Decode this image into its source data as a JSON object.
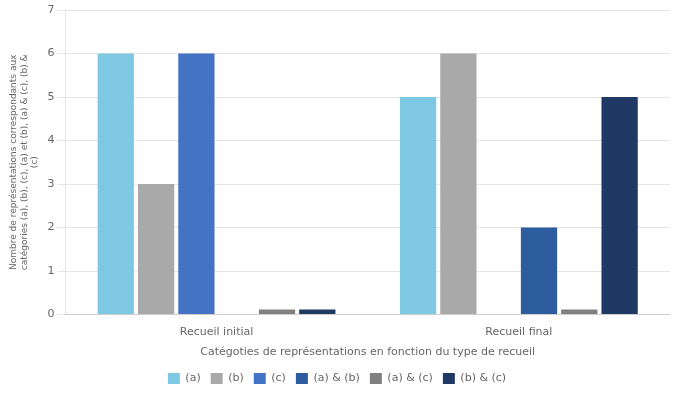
{
  "chart_data": {
    "type": "bar",
    "categories": [
      "Recueil initial",
      "Recueil final"
    ],
    "series": [
      {
        "name": "(a)",
        "color": "#7EC8E3",
        "values": [
          6,
          5
        ]
      },
      {
        "name": "(b)",
        "color": "#A9A9A9",
        "values": [
          3,
          6
        ]
      },
      {
        "name": "(c)",
        "color": "#4472C4",
        "values": [
          6,
          0
        ]
      },
      {
        "name": "(a) & (b)",
        "color": "#2E5D9F",
        "values": [
          0,
          2
        ]
      },
      {
        "name": "(a) & (c)",
        "color": "#808080",
        "values": [
          0.12,
          0.12
        ]
      },
      {
        "name": "(b) & (c)",
        "color": "#1F3864",
        "values": [
          0.12,
          5
        ]
      }
    ],
    "xlabel": "Catégoties de représentations en fonction du type de recueil",
    "ylabel": "Nombre de représentations correspondants aux\ncatégories (a), (b), (c), (a) et (b), (a) & (c), (b) &\n(c)",
    "ylim": [
      0,
      7
    ],
    "yticks": [
      0,
      1,
      2,
      3,
      4,
      5,
      6,
      7
    ],
    "grid": true,
    "legend": "bottom"
  }
}
